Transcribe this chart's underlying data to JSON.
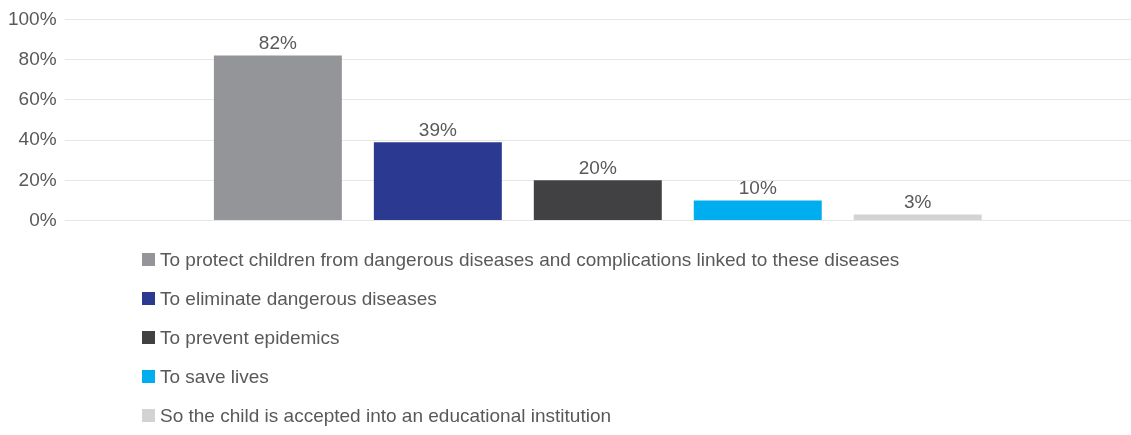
{
  "chart_data": {
    "type": "bar",
    "categories": [
      null
    ],
    "series": [
      {
        "name": "To protect children from dangerous diseases and complications linked to these diseases",
        "color": "#939598",
        "values": [
          82
        ],
        "value_labels": [
          "82%"
        ]
      },
      {
        "name": "To eliminate dangerous diseases",
        "color": "#2b3990",
        "values": [
          39
        ],
        "value_labels": [
          "39%"
        ]
      },
      {
        "name": "To prevent epidemics",
        "color": "#414042",
        "values": [
          20
        ],
        "value_labels": [
          "20%"
        ]
      },
      {
        "name": "To save lives",
        "color": "#00aeef",
        "values": [
          10
        ],
        "value_labels": [
          "10%"
        ]
      },
      {
        "name": "So the child is accepted into an educational institution",
        "color": "#d1d3d4",
        "values": [
          3
        ],
        "value_labels": [
          "3%"
        ]
      }
    ],
    "ylim": [
      0,
      100
    ],
    "yticks": [
      {
        "value": 0,
        "label": "0%"
      },
      {
        "value": 20,
        "label": "20%"
      },
      {
        "value": 40,
        "label": "40%"
      },
      {
        "value": 60,
        "label": "60%"
      },
      {
        "value": 80,
        "label": "80%"
      },
      {
        "value": 100,
        "label": "100%"
      }
    ],
    "grid": "y",
    "legend": "bottom",
    "tick_labels": "y"
  }
}
